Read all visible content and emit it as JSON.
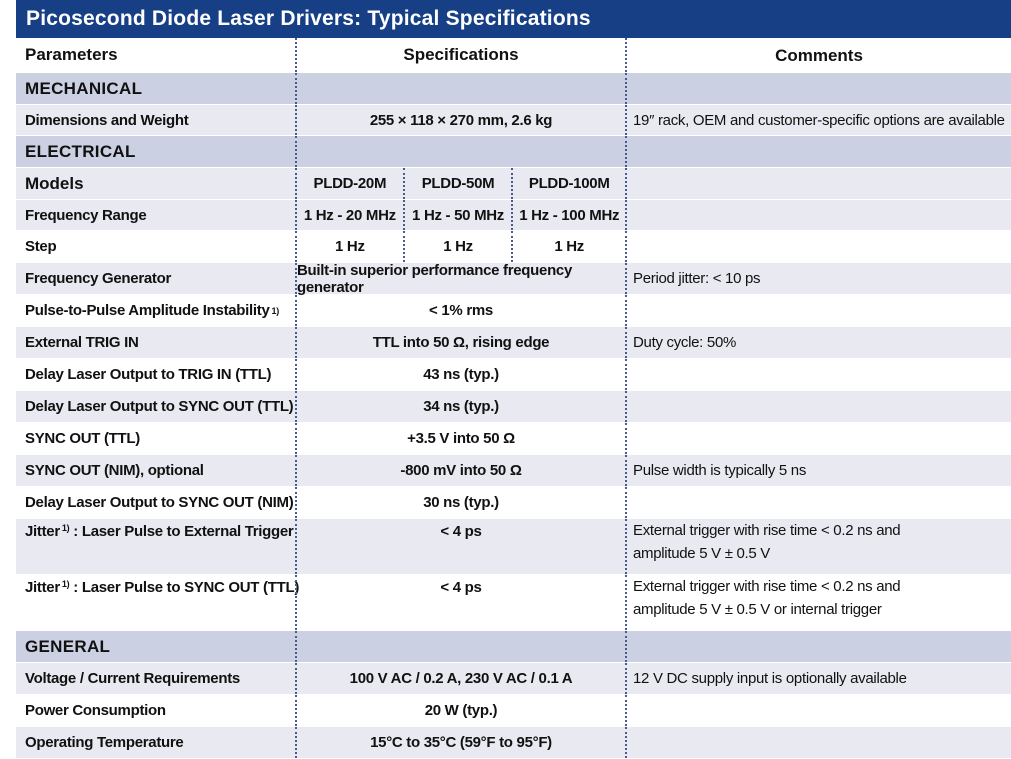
{
  "title": "Picosecond Diode Laser Drivers: Typical Specifications",
  "header": {
    "parameters": "Parameters",
    "specifications": "Specifications",
    "comments": "Comments"
  },
  "sections": {
    "mechanical": "MECHANICAL",
    "electrical": "ELECTRICAL",
    "general": "GENERAL"
  },
  "footnote_mark": "1)",
  "rows": {
    "dimensions": {
      "param": "Dimensions and Weight",
      "spec": "255 × 118 × 270 mm, 2.6 kg",
      "comment": "19″ rack, OEM and customer-specific options are available"
    },
    "models": {
      "param": "Models",
      "m1": "PLDD-20M",
      "m2": "PLDD-50M",
      "m3": "PLDD-100M"
    },
    "freq_range": {
      "param": "Frequency Range",
      "m1": "1 Hz - 20 MHz",
      "m2": "1 Hz - 50 MHz",
      "m3": "1 Hz - 100 MHz"
    },
    "step": {
      "param": "Step",
      "m1": "1 Hz",
      "m2": "1 Hz",
      "m3": "1 Hz"
    },
    "freq_gen": {
      "param": "Frequency Generator",
      "spec": "Built-in superior performance frequency generator",
      "comment": "Period jitter: < 10 ps"
    },
    "pulse_instab": {
      "param": "Pulse-to-Pulse Amplitude Instability",
      "spec": "< 1% rms",
      "comment": ""
    },
    "ext_trig": {
      "param": "External TRIG IN",
      "spec": "TTL into 50 Ω, rising edge",
      "comment": "Duty cycle: 50%"
    },
    "delay_trig": {
      "param": "Delay Laser Output to TRIG IN (TTL)",
      "spec": "43 ns (typ.)",
      "comment": ""
    },
    "delay_sync_ttl": {
      "param": "Delay Laser Output to SYNC OUT (TTL)",
      "spec": "34 ns (typ.)",
      "comment": ""
    },
    "sync_ttl": {
      "param": "SYNC OUT (TTL)",
      "spec": "+3.5 V into 50 Ω",
      "comment": ""
    },
    "sync_nim": {
      "param": "SYNC OUT (NIM), optional",
      "spec": "-800 mV into 50 Ω",
      "comment": "Pulse width is typically 5 ns"
    },
    "delay_sync_nim": {
      "param": "Delay Laser Output to SYNC OUT (NIM)",
      "spec": "30 ns (typ.)",
      "comment": ""
    },
    "jitter_ext": {
      "param_a": "Jitter",
      "param_b": ": Laser Pulse to External Trigger",
      "spec": "< 4 ps",
      "comment_1": "External trigger with rise time < 0.2 ns and",
      "comment_2": "amplitude 5 V ± 0.5 V"
    },
    "jitter_sync": {
      "param_a": "Jitter",
      "param_b": ": Laser Pulse to SYNC OUT (TTL)",
      "spec": "< 4 ps",
      "comment_1": "External trigger with rise time < 0.2 ns and",
      "comment_2": "amplitude 5 V ± 0.5 V or internal trigger"
    },
    "voltage": {
      "param": "Voltage / Current Requirements",
      "spec": "100 V AC / 0.2 A, 230 V AC /  0.1 A",
      "comment": "12 V DC supply input is optionally available"
    },
    "power": {
      "param": "Power Consumption",
      "spec": "20 W (typ.)",
      "comment": ""
    },
    "temp": {
      "param": "Operating Temperature",
      "spec": "15°C to 35°C (59°F to 95°F)",
      "comment": ""
    }
  }
}
